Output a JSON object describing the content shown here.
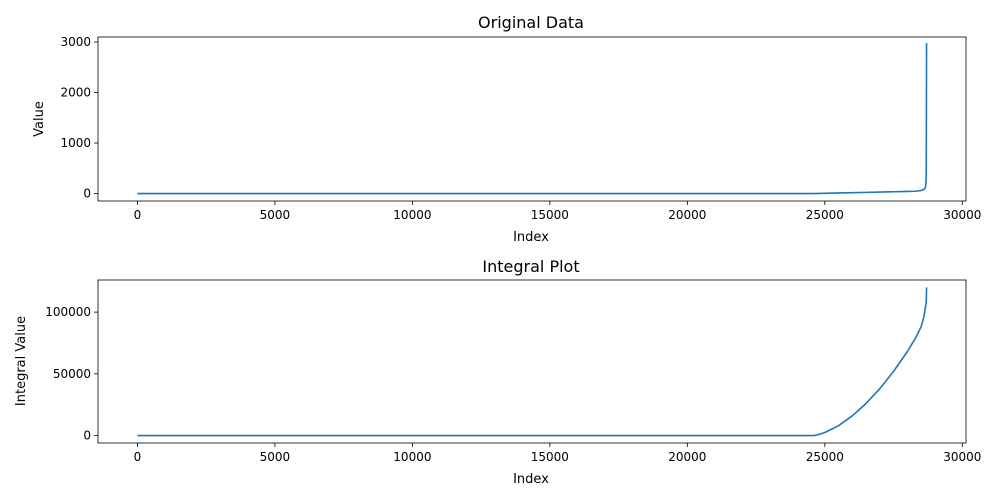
{
  "chart_data": [
    {
      "type": "line",
      "title": "Original Data",
      "xlabel": "Index",
      "ylabel": "Value",
      "xlim": [
        -1435,
        30135
      ],
      "ylim": [
        -148,
        3100
      ],
      "xticks": [
        0,
        5000,
        10000,
        15000,
        20000,
        25000,
        30000
      ],
      "yticks": [
        0,
        1000,
        2000,
        3000
      ],
      "series": [
        {
          "color": "#1f77b4",
          "x": [
            0,
            24600,
            25000,
            25500,
            26000,
            26500,
            27000,
            27500,
            28000,
            28300,
            28500,
            28600,
            28650,
            28670,
            28680,
            28690,
            28700
          ],
          "y": [
            0,
            0,
            5,
            11,
            17,
            23,
            29,
            35,
            41,
            45,
            60,
            80,
            110,
            150,
            220,
            400,
            2980
          ]
        }
      ]
    },
    {
      "type": "line",
      "title": "Integral Plot",
      "xlabel": "Index",
      "ylabel": "Integral Value",
      "xlim": [
        -1435,
        30135
      ],
      "ylim": [
        -6000,
        126000
      ],
      "xticks": [
        0,
        5000,
        10000,
        15000,
        20000,
        25000,
        30000
      ],
      "yticks": [
        0,
        50000,
        100000
      ],
      "series": [
        {
          "color": "#1f77b4",
          "x": [
            0,
            24600,
            24800,
            25000,
            25500,
            26000,
            26500,
            27000,
            27500,
            28000,
            28300,
            28500,
            28600,
            28690,
            28700
          ],
          "y": [
            0,
            0,
            1000,
            2500,
            8000,
            16000,
            26000,
            38000,
            52000,
            68000,
            79000,
            88000,
            96000,
            108000,
            120000
          ]
        }
      ]
    }
  ]
}
